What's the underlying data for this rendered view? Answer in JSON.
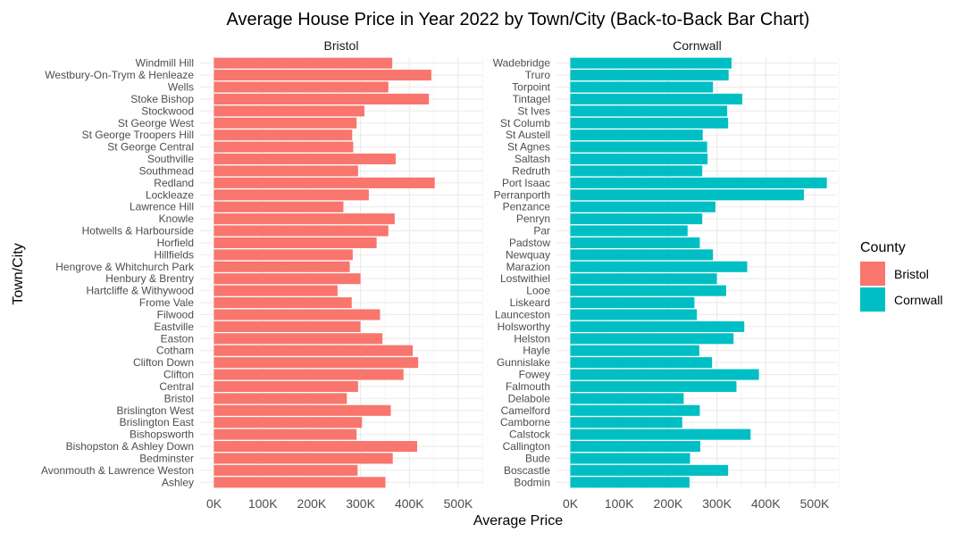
{
  "chart_data": {
    "type": "bar",
    "orientation": "horizontal",
    "title": "Average House Price in Year 2022 by Town/City (Back-to-Back Bar Chart)",
    "xlabel": "Average Price",
    "ylabel": "Town/City",
    "xlim": [
      0,
      550000
    ],
    "xticks": [
      0,
      100000,
      200000,
      300000,
      400000,
      500000
    ],
    "xtick_labels": [
      "0K",
      "100K",
      "200K",
      "300K",
      "400K",
      "500K"
    ],
    "grid": true,
    "legend": {
      "title": "County",
      "position": "right",
      "entries": [
        {
          "label": "Bristol",
          "color": "#F8766D"
        },
        {
          "label": "Cornwall",
          "color": "#00BFC4"
        }
      ]
    },
    "panels": [
      {
        "name": "Bristol",
        "color": "#F8766D",
        "categories": [
          "Windmill Hill",
          "Westbury-On-Trym & Henleaze",
          "Wells",
          "Stoke Bishop",
          "Stockwood",
          "St George West",
          "St George Troopers Hill",
          "St George Central",
          "Southville",
          "Southmead",
          "Redland",
          "Lockleaze",
          "Lawrence Hill",
          "Knowle",
          "Hotwells & Harbourside",
          "Horfield",
          "Hillfields",
          "Hengrove & Whitchurch Park",
          "Henbury & Brentry",
          "Hartcliffe & Withywood",
          "Frome Vale",
          "Filwood",
          "Eastville",
          "Easton",
          "Cotham",
          "Clifton Down",
          "Clifton",
          "Central",
          "Bristol",
          "Brislington West",
          "Brislington East",
          "Bishopsworth",
          "Bishopston & Ashley Down",
          "Bedminster",
          "Avonmouth & Lawrence Weston",
          "Ashley"
        ],
        "values": [
          365000,
          445000,
          357000,
          440000,
          308000,
          292000,
          283000,
          285000,
          372000,
          295000,
          452000,
          317000,
          265000,
          370000,
          357000,
          333000,
          284000,
          278000,
          300000,
          253000,
          282000,
          340000,
          300000,
          345000,
          407000,
          418000,
          388000,
          295000,
          272000,
          362000,
          303000,
          292000,
          416000,
          366000,
          294000,
          351000
        ]
      },
      {
        "name": "Cornwall",
        "color": "#00BFC4",
        "categories": [
          "Wadebridge",
          "Truro",
          "Torpoint",
          "Tintagel",
          "St Ives",
          "St Columb",
          "St Austell",
          "St Agnes",
          "Saltash",
          "Redruth",
          "Port Isaac",
          "Perranporth",
          "Penzance",
          "Penryn",
          "Par",
          "Padstow",
          "Newquay",
          "Marazion",
          "Lostwithiel",
          "Looe",
          "Liskeard",
          "Launceston",
          "Holsworthy",
          "Helston",
          "Hayle",
          "Gunnislake",
          "Fowey",
          "Falmouth",
          "Delabole",
          "Camelford",
          "Camborne",
          "Calstock",
          "Callington",
          "Bude",
          "Boscastle",
          "Bodmin"
        ],
        "values": [
          330000,
          324000,
          292000,
          352000,
          321000,
          323000,
          271000,
          280000,
          281000,
          270000,
          525000,
          478000,
          297000,
          270000,
          240000,
          265000,
          292000,
          362000,
          300000,
          319000,
          254000,
          259000,
          356000,
          334000,
          264000,
          290000,
          386000,
          340000,
          232000,
          265000,
          229000,
          369000,
          266000,
          245000,
          323000,
          244000
        ]
      }
    ]
  }
}
